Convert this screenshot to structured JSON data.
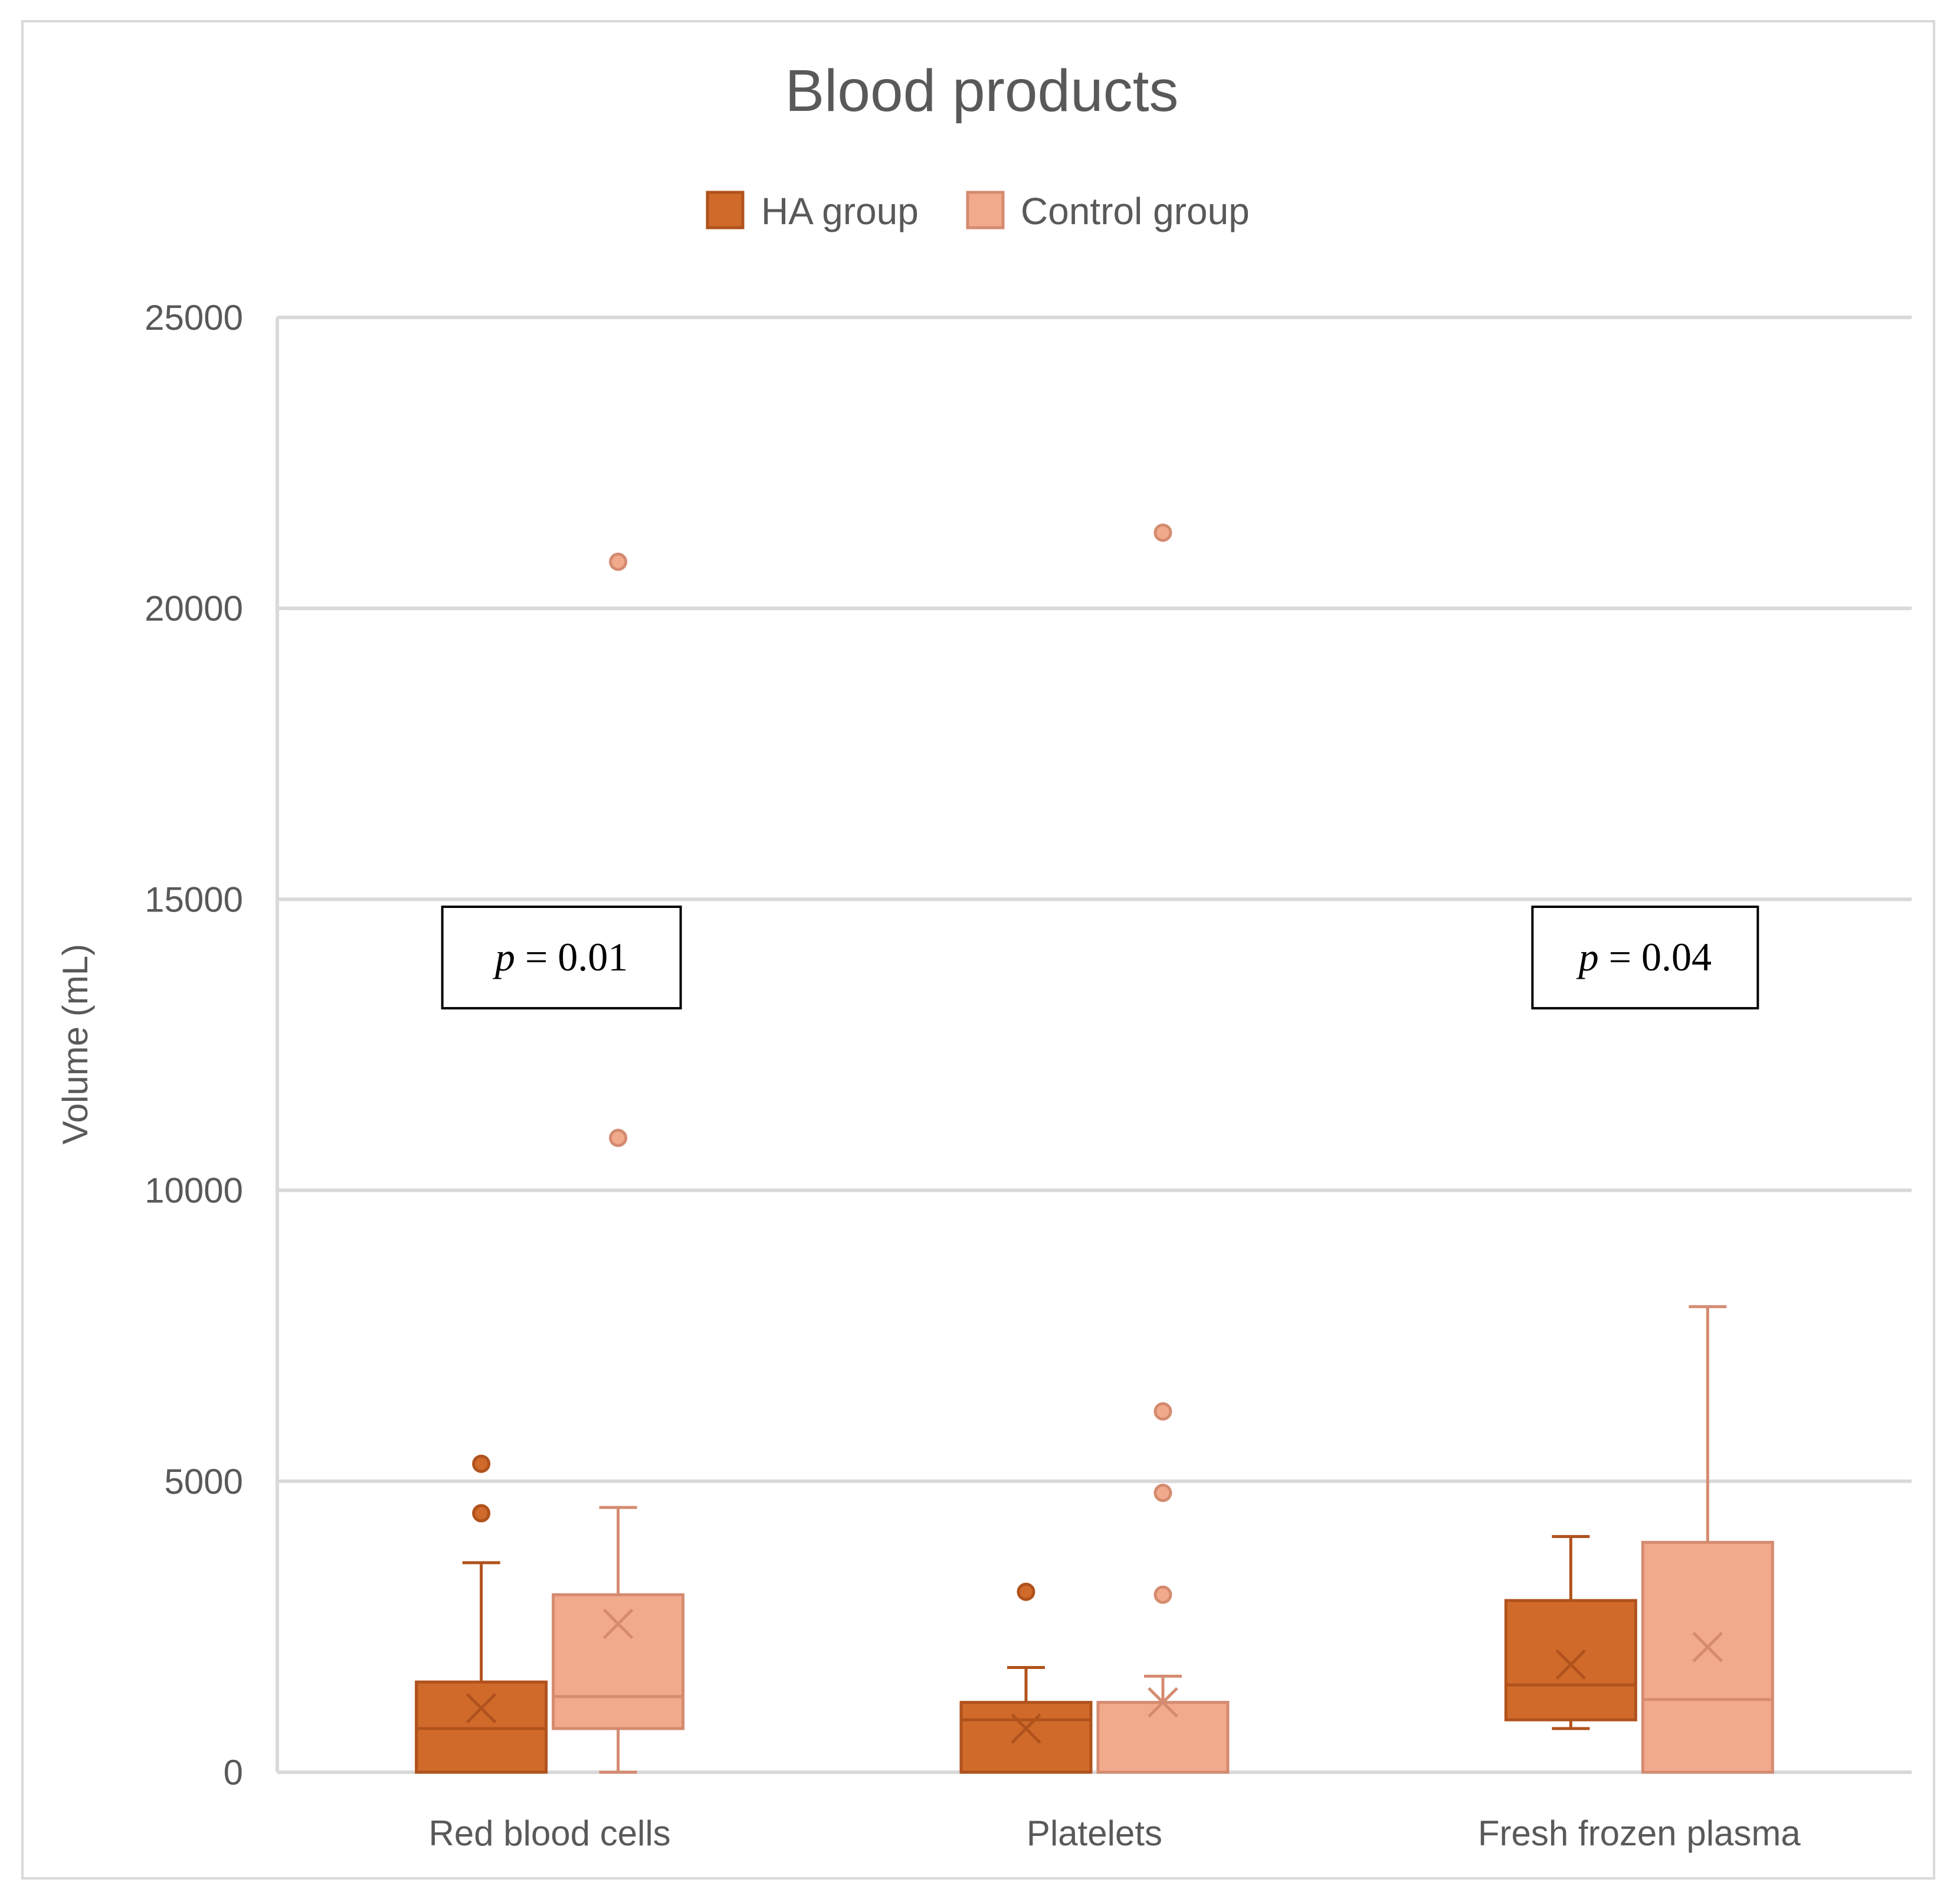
{
  "chart_data": {
    "type": "boxplot",
    "title": "Blood products",
    "ylabel": "Volume (mL)",
    "xlabel": "",
    "ylim": [
      0,
      25000
    ],
    "yticks": [
      0,
      5000,
      10000,
      15000,
      20000,
      25000
    ],
    "grid": true,
    "legend_position": "top-center",
    "categories": [
      "Red blood cells",
      "Platelets",
      "Fresh frozen plasma"
    ],
    "series": [
      {
        "name": "HA group",
        "color": "#d06a2b",
        "stroke": "#b0521c",
        "boxes": [
          {
            "min": 0,
            "q1": 0,
            "median": 750,
            "q3": 1550,
            "max": 3600,
            "mean": 1100,
            "outliers": [
              5300,
              4450
            ]
          },
          {
            "min": 0,
            "q1": 0,
            "median": 900,
            "q3": 1200,
            "max": 1800,
            "mean": 750,
            "outliers": [
              3100
            ]
          },
          {
            "min": 750,
            "q1": 900,
            "median": 1500,
            "q3": 2950,
            "max": 4050,
            "mean": 1850,
            "outliers": []
          }
        ]
      },
      {
        "name": "Control group",
        "color": "#f2aa8c",
        "stroke": "#d48b70",
        "boxes": [
          {
            "min": 0,
            "q1": 750,
            "median": 1300,
            "q3": 3050,
            "max": 4550,
            "mean": 2550,
            "outliers": [
              20800,
              10900
            ]
          },
          {
            "min": 0,
            "q1": 0,
            "median": 0,
            "q3": 1200,
            "max": 1650,
            "mean": 1200,
            "outliers": [
              21300,
              6200,
              4800,
              3050
            ]
          },
          {
            "min": 0,
            "q1": 0,
            "median": 1250,
            "q3": 3950,
            "max": 8000,
            "mean": 2150,
            "outliers": []
          }
        ]
      }
    ],
    "annotations": [
      {
        "category": "Red blood cells",
        "italic": "p",
        "text": " = 0.01",
        "y": 14000
      },
      {
        "category": "Fresh frozen plasma",
        "italic": "p",
        "text": " = 0.04",
        "y": 14000
      }
    ]
  },
  "colors": {
    "grid": "#d9d9d9",
    "text": "#595959"
  }
}
